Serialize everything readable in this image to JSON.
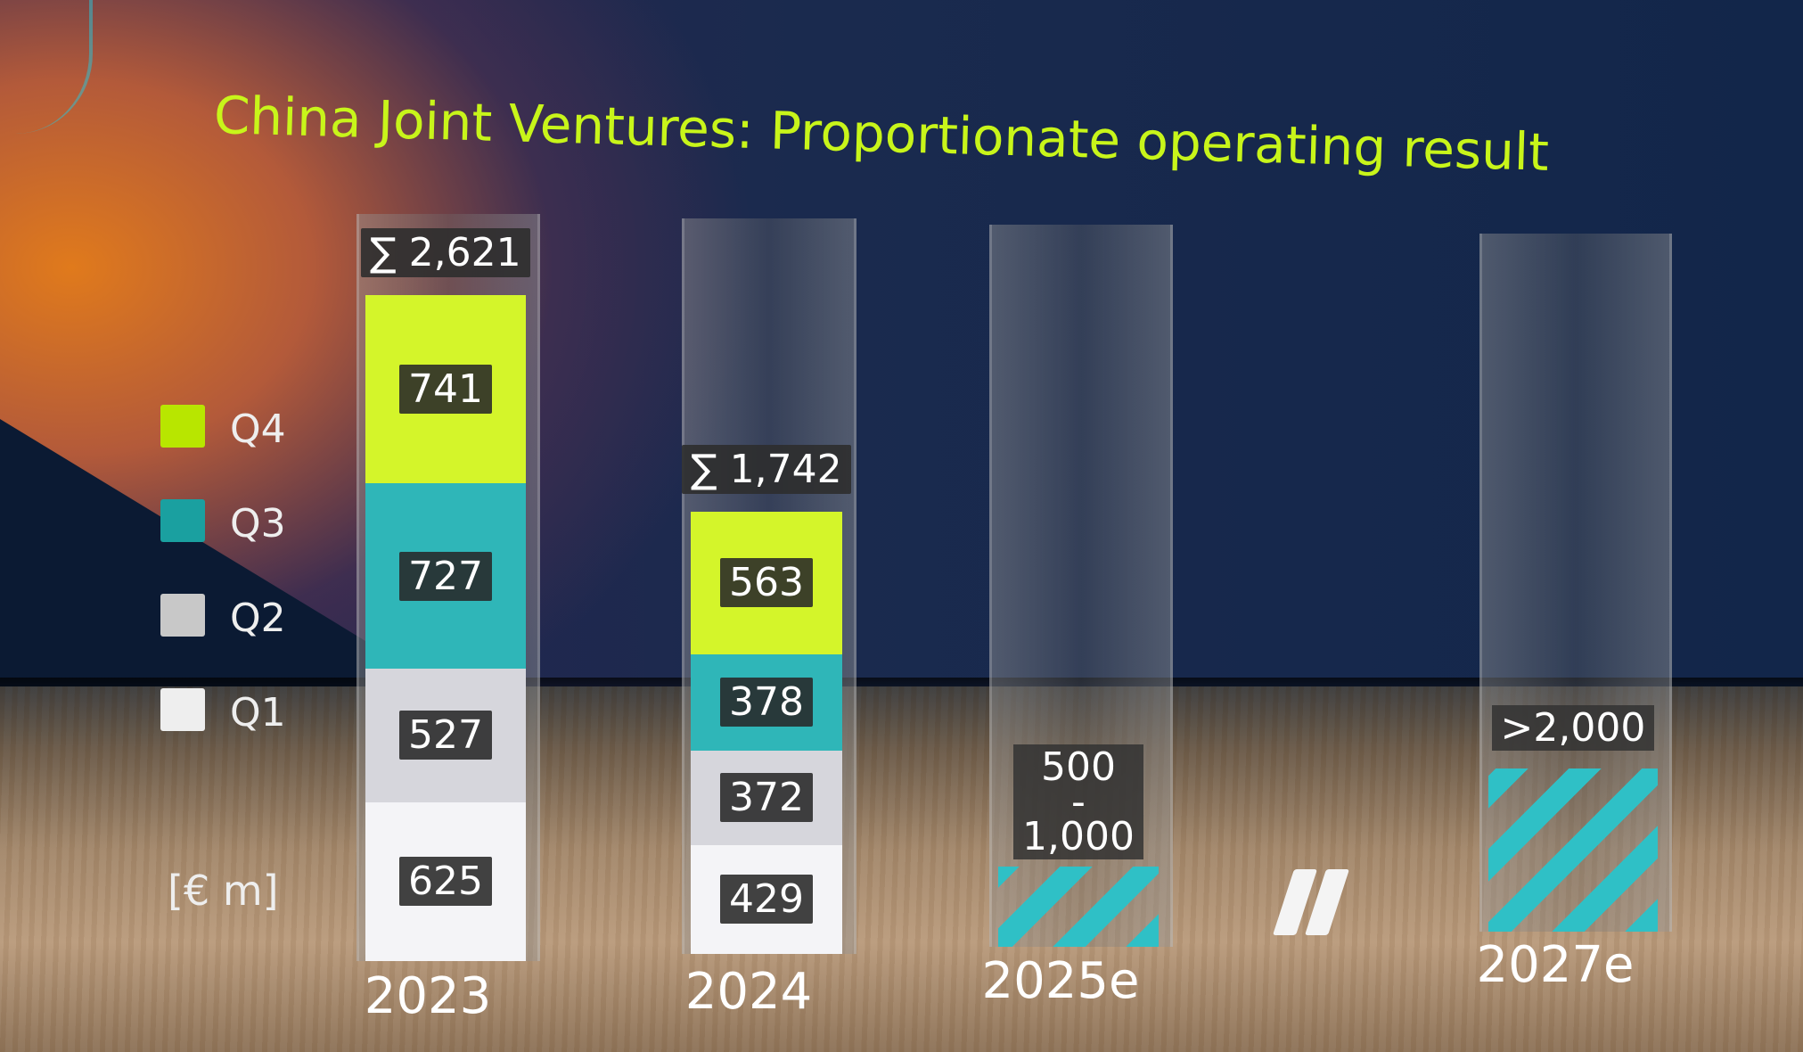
{
  "title": "China Joint Ventures: Proportionate operating result",
  "unit_label": "[€ m]",
  "legend": [
    {
      "label": "Q4",
      "color": "#b8e600"
    },
    {
      "label": "Q3",
      "color": "#1aa0a0"
    },
    {
      "label": "Q2",
      "color": "#c8c8c8"
    },
    {
      "label": "Q1",
      "color": "#eeeeee"
    }
  ],
  "colors": {
    "Q1": "#f4f4f7",
    "Q2": "#d6d6dc",
    "Q3": "#2fb6b8",
    "Q4": "#d4f52a",
    "hatch": "#2fc0c6"
  },
  "axis_break_icon": "axis-break-icon",
  "chart_data": {
    "type": "bar",
    "stacked": true,
    "title": "China Joint Ventures: Proportionate operating result",
    "ylabel": "[€ m]",
    "categories": [
      "2023",
      "2024",
      "2025e",
      "2027e"
    ],
    "series": [
      {
        "name": "Q1",
        "values": [
          625,
          429,
          null,
          null
        ]
      },
      {
        "name": "Q2",
        "values": [
          527,
          372,
          null,
          null
        ]
      },
      {
        "name": "Q3",
        "values": [
          727,
          378,
          null,
          null
        ]
      },
      {
        "name": "Q4",
        "values": [
          741,
          563,
          null,
          null
        ]
      }
    ],
    "totals": [
      "∑ 2,621",
      "∑ 1,742",
      null,
      null
    ],
    "estimates": [
      null,
      null,
      {
        "min": 500,
        "max": 1000,
        "label_lines": [
          "500",
          "-",
          "1,000"
        ]
      },
      {
        "min": 2000,
        "label_lines": [
          ">2,000"
        ]
      }
    ],
    "ylim": [
      0,
      2621
    ],
    "legend_position": "left",
    "grid": false
  }
}
